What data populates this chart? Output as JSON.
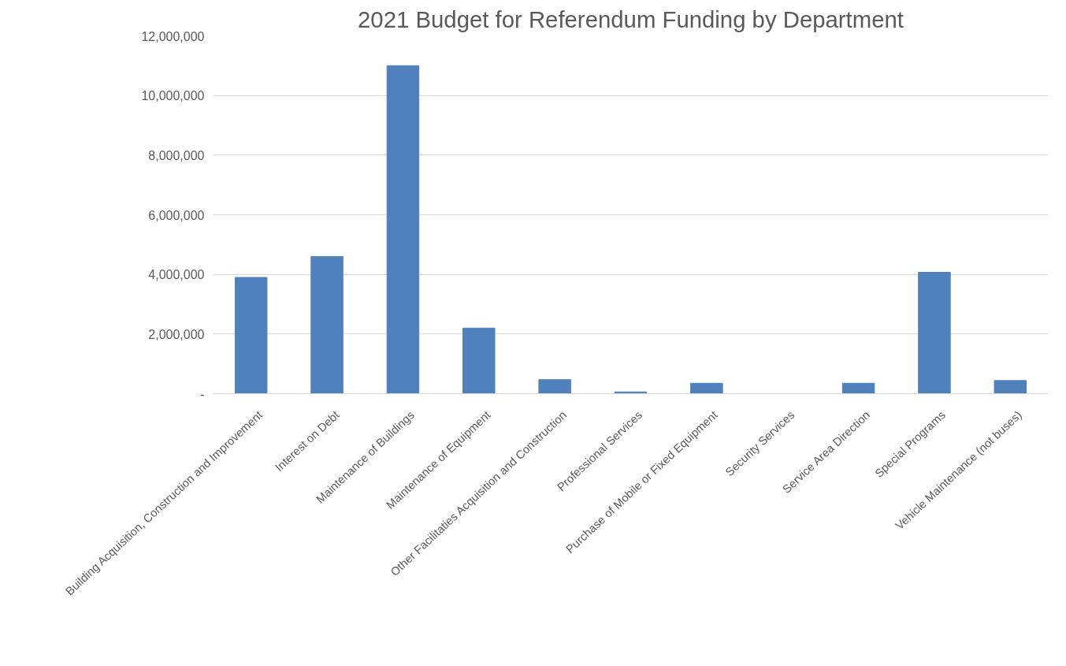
{
  "chart_data": {
    "type": "bar",
    "title": "2021 Budget for Referendum Funding by Department",
    "categories": [
      "Building Acquisition, Construction and Improvement",
      "Interest on Debt",
      "Maintenance of Buildings",
      "Maintenance of Equipment",
      "Other Facilitaties Acquisition and Construction",
      "Professional Services",
      "Purchase of Mobile or Fixed Equipment",
      "Security Services",
      "Service Area Direction",
      "Special Programs",
      "Vehicle Maintenance (not buses)"
    ],
    "values": [
      3900000,
      4600000,
      11000000,
      2200000,
      470000,
      60000,
      350000,
      0,
      350000,
      4070000,
      440000
    ],
    "color": "#4f81bd",
    "ylim": [
      0,
      12000000
    ],
    "yticks": [
      {
        "value": 0,
        "label": "-"
      },
      {
        "value": 2000000,
        "label": "2,000,000"
      },
      {
        "value": 4000000,
        "label": "4,000,000"
      },
      {
        "value": 6000000,
        "label": "6,000,000"
      },
      {
        "value": 8000000,
        "label": "8,000,000"
      },
      {
        "value": 10000000,
        "label": "10,000,000"
      },
      {
        "value": 12000000,
        "label": "12,000,000"
      }
    ],
    "grid": "y"
  }
}
